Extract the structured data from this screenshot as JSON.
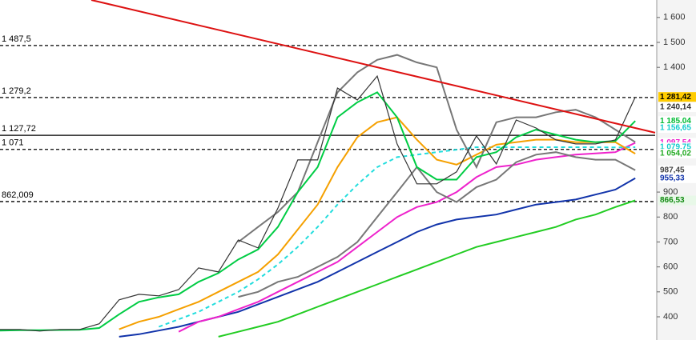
{
  "chart_data": {
    "type": "line",
    "ylim": [
      307,
      1670
    ],
    "xlim": [
      0,
      33
    ],
    "yticks": [
      {
        "value": 1600,
        "label": "1 600"
      },
      {
        "value": 1500,
        "label": "1 500"
      },
      {
        "value": 1400,
        "label": "1 400"
      },
      900,
      800,
      700,
      600,
      500,
      400
    ],
    "x": [
      0,
      1,
      2,
      3,
      4,
      5,
      6,
      7,
      8,
      9,
      10,
      11,
      12,
      13,
      14,
      15,
      16,
      17,
      18,
      19,
      20,
      21,
      22,
      23,
      24,
      25,
      26,
      27,
      28,
      29,
      30,
      31,
      32
    ],
    "series": [
      {
        "color": "#22cc22",
        "values": [
          null,
          null,
          null,
          null,
          null,
          null,
          null,
          null,
          null,
          null,
          null,
          320,
          340,
          360,
          380,
          410,
          440,
          470,
          500,
          530,
          560,
          590,
          620,
          650,
          680,
          700,
          720,
          740,
          760,
          790,
          810,
          840,
          866.53
        ]
      },
      {
        "color": "#1133aa",
        "values": [
          null,
          null,
          null,
          null,
          null,
          null,
          320,
          330,
          345,
          360,
          380,
          400,
          420,
          450,
          480,
          510,
          540,
          580,
          620,
          660,
          700,
          740,
          770,
          790,
          800,
          810,
          830,
          850,
          860,
          870,
          890,
          910,
          955.33
        ]
      },
      {
        "color": "#ee22cc",
        "values": [
          null,
          null,
          null,
          null,
          null,
          null,
          null,
          null,
          null,
          340,
          380,
          400,
          430,
          460,
          500,
          540,
          580,
          620,
          680,
          740,
          800,
          840,
          860,
          900,
          960,
          1000,
          1010,
          1030,
          1040,
          1050,
          1055,
          1060,
          1097.54
        ]
      },
      {
        "color": "#22dddd",
        "dashed": true,
        "values": [
          null,
          null,
          null,
          null,
          null,
          null,
          null,
          null,
          360,
          390,
          420,
          460,
          500,
          550,
          610,
          680,
          760,
          850,
          930,
          1000,
          1040,
          1050,
          1060,
          1070,
          1080,
          1080,
          1080,
          1080,
          1080,
          1080,
          1080,
          1079,
          1079.75
        ]
      },
      {
        "color": "#f5a000",
        "values": [
          null,
          null,
          null,
          null,
          null,
          null,
          350,
          380,
          400,
          430,
          460,
          500,
          540,
          580,
          650,
          750,
          850,
          1000,
          1120,
          1180,
          1200,
          1110,
          1030,
          1010,
          1050,
          1090,
          1100,
          1110,
          1110,
          1100,
          1100,
          1100,
          1054.02
        ]
      },
      {
        "color": "#777777",
        "values": [
          null,
          null,
          null,
          null,
          null,
          null,
          null,
          null,
          null,
          null,
          null,
          null,
          700,
          760,
          820,
          900,
          1100,
          1300,
          1380,
          1430,
          1450,
          1420,
          1400,
          1150,
          1000,
          1180,
          1200,
          1200,
          1220,
          1230,
          1200,
          1150,
          1100
        ]
      },
      {
        "color": "#777777",
        "values": [
          null,
          null,
          null,
          null,
          null,
          null,
          null,
          null,
          null,
          null,
          null,
          null,
          480,
          500,
          540,
          560,
          600,
          640,
          700,
          800,
          900,
          1000,
          900,
          860,
          920,
          950,
          1020,
          1050,
          1060,
          1040,
          1030,
          1030,
          987.45
        ]
      },
      {
        "color": "#00cc44",
        "values": [
          345,
          346,
          346,
          347,
          348,
          355,
          410,
          460,
          478,
          490,
          540,
          575,
          630,
          670,
          760,
          900,
          1000,
          1200,
          1260,
          1300,
          1200,
          1000,
          950,
          950,
          1040,
          1060,
          1120,
          1150,
          1130,
          1110,
          1100,
          1105,
          1185.04
        ]
      },
      {
        "color": "#333333",
        "values": [
          349,
          349,
          343,
          349,
          349,
          372,
          468,
          490,
          484,
          509,
          596,
          580,
          708,
          676,
          836,
          1029,
          1029,
          1317,
          1269,
          1365,
          1093,
          933,
          933,
          981,
          1125,
          1013,
          1189,
          1157,
          1109,
          1093,
          1093,
          1109,
          1281.42
        ]
      }
    ],
    "trendline": {
      "color": "#dd1111",
      "x": [
        4.6,
        33
      ],
      "values": [
        1670,
        1138
      ]
    },
    "levels": [
      {
        "value": 1487.5,
        "label": "1 487,5",
        "dashed": true
      },
      {
        "value": 1279.2,
        "label": "1 279,2",
        "dashed": true
      },
      {
        "value": 1127.72,
        "label": "1 127,72",
        "dashed": false
      },
      {
        "value": 1071,
        "label": "1 071",
        "dashed": true
      },
      {
        "value": 862.009,
        "label": "862,009",
        "dashed": true
      }
    ],
    "price_tags": [
      {
        "value": 1281.42,
        "label": "1 281,42",
        "color": "#000000",
        "background": "#ffcc00"
      },
      {
        "value": 1240.14,
        "label": "1 240,14",
        "color": "#333333",
        "background": "#ffffff"
      },
      {
        "value": 1185.04,
        "label": "1 185,04",
        "color": "#00bb33",
        "background": "#ffffff"
      },
      {
        "value": 1156.65,
        "label": "1 156,65",
        "color": "#11cccc",
        "background": "#ffffff"
      },
      {
        "value": 1097.54,
        "label": "1 097,54",
        "color": "#ee22cc",
        "background": "#ffffff"
      },
      {
        "value": 1079.75,
        "label": "1 079,75",
        "color": "#11cccc",
        "background": "#ffffff"
      },
      {
        "value": 1054.02,
        "label": "1 054,02",
        "color": "#22aa22",
        "background": "#ffffff"
      },
      {
        "value": 987.45,
        "label": "987,45",
        "color": "#444444",
        "background": "#ffffff"
      },
      {
        "value": 955.33,
        "label": "955,33",
        "color": "#1133aa",
        "background": "#ffffff"
      },
      {
        "value": 866.53,
        "label": "866,53",
        "color": "#118811",
        "background": "#e8f8e8"
      }
    ]
  }
}
